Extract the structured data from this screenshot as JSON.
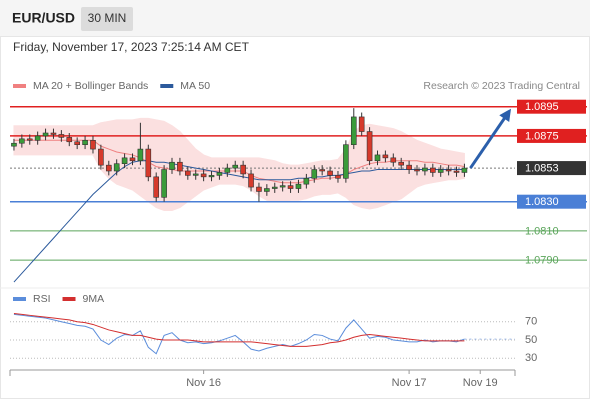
{
  "header": {
    "symbol": "EUR/USD",
    "timeframe": "30 MIN",
    "datetime": "Friday, November 17, 2023 7:25:14 AM CET"
  },
  "chart_data": [
    {
      "type": "candlestick",
      "source": "Research © 2023 Trading Central",
      "xlim": [
        -0.5,
        63.4
      ],
      "ylim": [
        1.0773,
        1.0903
      ],
      "up_color": "#3a9b3a",
      "down_color": "#d63a2c",
      "open": [
        1.0868,
        1.087,
        1.0873,
        1.0872,
        1.0875,
        1.0877,
        1.0876,
        1.0874,
        1.0871,
        1.0869,
        1.0872,
        1.0866,
        1.0855,
        1.0851,
        1.0856,
        1.086,
        1.0858,
        1.0866,
        1.0847,
        1.0833,
        1.0852,
        1.0857,
        1.0851,
        1.0848,
        1.0849,
        1.0847,
        1.0848,
        1.085,
        1.0853,
        1.0855,
        1.0849,
        1.084,
        1.0837,
        1.0839,
        1.084,
        1.0841,
        1.0839,
        1.0842,
        1.0846,
        1.0852,
        1.0851,
        1.0848,
        1.0846,
        1.0869,
        1.0888,
        1.0878,
        1.0858,
        1.0862,
        1.086,
        1.0857,
        1.0855,
        1.0852,
        1.0851,
        1.0853,
        1.085,
        1.0852,
        1.0851,
        1.085
      ],
      "high": [
        1.0873,
        1.0876,
        1.0876,
        1.0878,
        1.088,
        1.088,
        1.0879,
        1.0877,
        1.0874,
        1.0875,
        1.0875,
        1.0869,
        1.0858,
        1.0859,
        1.0863,
        1.0863,
        1.0884,
        1.0869,
        1.085,
        1.0855,
        1.086,
        1.086,
        1.0854,
        1.0852,
        1.0852,
        1.0851,
        1.0853,
        1.0856,
        1.0858,
        1.0858,
        1.0852,
        1.0843,
        1.0842,
        1.0843,
        1.0844,
        1.0844,
        1.0845,
        1.0849,
        1.0855,
        1.0855,
        1.0854,
        1.0851,
        1.0872,
        1.0894,
        1.0891,
        1.0881,
        1.0865,
        1.0865,
        1.0863,
        1.086,
        1.0858,
        1.0855,
        1.0856,
        1.0856,
        1.0855,
        1.0855,
        1.0854,
        1.0856
      ],
      "low": [
        1.0865,
        1.0867,
        1.0869,
        1.0869,
        1.0872,
        1.0873,
        1.0871,
        1.0868,
        1.0866,
        1.0866,
        1.0863,
        1.0852,
        1.0848,
        1.0848,
        1.0853,
        1.0855,
        1.0855,
        1.0844,
        1.083,
        1.083,
        1.0849,
        1.0848,
        1.0845,
        1.0845,
        1.0844,
        1.0844,
        1.0845,
        1.0847,
        1.085,
        1.0846,
        1.0837,
        1.083,
        1.0834,
        1.0836,
        1.0837,
        1.0836,
        1.0836,
        1.0839,
        1.0843,
        1.0848,
        1.0845,
        1.0843,
        1.0843,
        1.0866,
        1.0875,
        1.0855,
        1.0855,
        1.0857,
        1.0854,
        1.0852,
        1.0849,
        1.0848,
        1.0848,
        1.0847,
        1.0847,
        1.0848,
        1.0847,
        1.0847
      ],
      "close": [
        1.087,
        1.0873,
        1.0872,
        1.0875,
        1.0877,
        1.0876,
        1.0874,
        1.0871,
        1.0869,
        1.0872,
        1.0866,
        1.0855,
        1.0851,
        1.0856,
        1.086,
        1.0858,
        1.0866,
        1.0847,
        1.0833,
        1.0852,
        1.0857,
        1.0851,
        1.0848,
        1.0849,
        1.0847,
        1.0848,
        1.085,
        1.0853,
        1.0855,
        1.0849,
        1.084,
        1.0837,
        1.0839,
        1.084,
        1.0841,
        1.0839,
        1.0842,
        1.0846,
        1.0852,
        1.0851,
        1.0848,
        1.0846,
        1.0869,
        1.0888,
        1.0878,
        1.0858,
        1.0862,
        1.086,
        1.0857,
        1.0855,
        1.0852,
        1.0851,
        1.0853,
        1.085,
        1.0852,
        1.0851,
        1.085,
        1.0853
      ],
      "series": [
        {
          "name": "MA 20 + Bollinger Bands",
          "color": "#f08080",
          "band_color": "#fbe0e0",
          "values": [
            1.0872,
            1.0872,
            1.0872,
            1.0872,
            1.0872,
            1.0872,
            1.0872,
            1.0872,
            1.0872,
            1.0872,
            1.0872,
            1.0868,
            1.0866,
            1.0864,
            1.0863,
            1.0862,
            1.086,
            1.0857,
            1.0854,
            1.0853,
            1.0852,
            1.0851,
            1.0851,
            1.0851,
            1.0851,
            1.0851,
            1.0851,
            1.0851,
            1.0851,
            1.0851,
            1.0848,
            1.0846,
            1.0845,
            1.0844,
            1.0843,
            1.0843,
            1.0843,
            1.0844,
            1.0845,
            1.0846,
            1.0846,
            1.0847,
            1.0849,
            1.0852,
            1.0854,
            1.0856,
            1.0857,
            1.0857,
            1.0858,
            1.0858,
            1.0858,
            1.0858,
            1.0857,
            1.0857,
            1.0856,
            1.0855,
            1.0855,
            1.0854
          ],
          "upper": [
            1.0882,
            1.0882,
            1.0882,
            1.0882,
            1.0882,
            1.0882,
            1.0882,
            1.0882,
            1.0882,
            1.0882,
            1.0882,
            1.0884,
            1.0885,
            1.0886,
            1.0886,
            1.0886,
            1.0887,
            1.0887,
            1.0886,
            1.0885,
            1.0882,
            1.0878,
            1.0872,
            1.0866,
            1.0862,
            1.086,
            1.086,
            1.086,
            1.086,
            1.086,
            1.086,
            1.086,
            1.0859,
            1.0858,
            1.0856,
            1.0855,
            1.0855,
            1.0856,
            1.0857,
            1.0858,
            1.0858,
            1.0859,
            1.0866,
            1.0878,
            1.0882,
            1.0883,
            1.0882,
            1.0881,
            1.088,
            1.0878,
            1.0875,
            1.0872,
            1.087,
            1.0868,
            1.0866,
            1.0865,
            1.0864,
            1.0863
          ],
          "lower": [
            1.0862,
            1.0862,
            1.0862,
            1.0862,
            1.0862,
            1.0862,
            1.0862,
            1.0862,
            1.0862,
            1.0862,
            1.0862,
            1.0852,
            1.0846,
            1.0842,
            1.084,
            1.0838,
            1.0834,
            1.083,
            1.0826,
            1.0824,
            1.0824,
            1.0826,
            1.083,
            1.0834,
            1.0838,
            1.084,
            1.0842,
            1.0842,
            1.0842,
            1.0841,
            1.0838,
            1.0834,
            1.0831,
            1.083,
            1.083,
            1.0831,
            1.0831,
            1.0832,
            1.0834,
            1.0835,
            1.0835,
            1.0836,
            1.0833,
            1.0828,
            1.0826,
            1.0825,
            1.0826,
            1.0828,
            1.083,
            1.0832,
            1.0836,
            1.084,
            1.0842,
            1.0843,
            1.0844,
            1.0845,
            1.0845,
            1.0846
          ]
        },
        {
          "name": "MA 50",
          "color": "#2c5a9c",
          "values": [
            1.0775,
            1.0781,
            1.0787,
            1.0793,
            1.0799,
            1.0805,
            1.0811,
            1.0817,
            1.0823,
            1.0829,
            1.0835,
            1.084,
            1.0845,
            1.085,
            1.0854,
            1.0857,
            1.0858,
            1.0858,
            1.0857,
            1.0857,
            1.0856,
            1.0855,
            1.0854,
            1.0853,
            1.0852,
            1.0851,
            1.085,
            1.0849,
            1.0848,
            1.0847,
            1.0846,
            1.0845,
            1.0845,
            1.0845,
            1.0845,
            1.0845,
            1.0846,
            1.0846,
            1.0847,
            1.0847,
            1.0848,
            1.0848,
            1.0849,
            1.085,
            1.0851,
            1.0851,
            1.0852,
            1.0852,
            1.0852,
            1.0852,
            1.0852,
            1.0852,
            1.0852,
            1.0852,
            1.0852,
            1.0852,
            1.0852,
            1.0852
          ]
        }
      ],
      "levels": [
        {
          "value": 1.0895,
          "color": "#e02020",
          "box": true
        },
        {
          "value": 1.0875,
          "color": "#e02020",
          "box": true
        },
        {
          "value": 1.0853,
          "color": "#333333",
          "box": true,
          "dotted": true
        },
        {
          "value": 1.083,
          "label": "1.0830",
          "color": "#4a7fd6",
          "box": true
        },
        {
          "value": 1.081,
          "label": "1.0810",
          "color": "#5aa55a",
          "box": false
        },
        {
          "value": 1.079,
          "label": "1.0790",
          "color": "#5aa55a",
          "box": false
        }
      ]
    },
    {
      "type": "line",
      "xlim": [
        -0.5,
        63.4
      ],
      "ylim": [
        15,
        85
      ],
      "yticks": [
        30,
        50,
        70
      ],
      "xticks": [
        {
          "value": 24,
          "label": "Nov 16"
        },
        {
          "value": 50,
          "label": "Nov 17"
        },
        {
          "value": 59,
          "label": "Nov 19"
        }
      ],
      "series": [
        {
          "name": "RSI",
          "color": "#5b8ddb",
          "values": [
            78,
            77,
            76,
            75,
            74,
            72,
            70,
            68,
            66,
            65,
            62,
            50,
            45,
            52,
            56,
            55,
            60,
            42,
            35,
            55,
            58,
            50,
            47,
            48,
            46,
            47,
            49,
            52,
            55,
            48,
            40,
            38,
            41,
            43,
            45,
            43,
            46,
            50,
            56,
            55,
            51,
            49,
            63,
            72,
            62,
            52,
            54,
            53,
            50,
            49,
            48,
            48,
            50,
            48,
            49,
            49,
            48,
            51
          ]
        },
        {
          "name": "9MA",
          "color": "#d32f2f",
          "values": [
            79,
            78,
            77,
            76,
            75,
            74,
            73,
            72,
            70,
            69,
            67,
            64,
            61,
            59,
            57,
            55,
            55,
            53,
            51,
            50,
            50,
            50,
            50,
            49,
            48,
            48,
            48,
            48,
            48,
            48,
            48,
            47,
            46,
            45,
            44,
            43,
            43,
            43,
            44,
            45,
            47,
            48,
            50,
            53,
            55,
            56,
            55,
            54,
            53,
            52,
            51,
            50,
            49,
            49,
            49,
            49,
            49,
            49
          ]
        }
      ]
    }
  ]
}
